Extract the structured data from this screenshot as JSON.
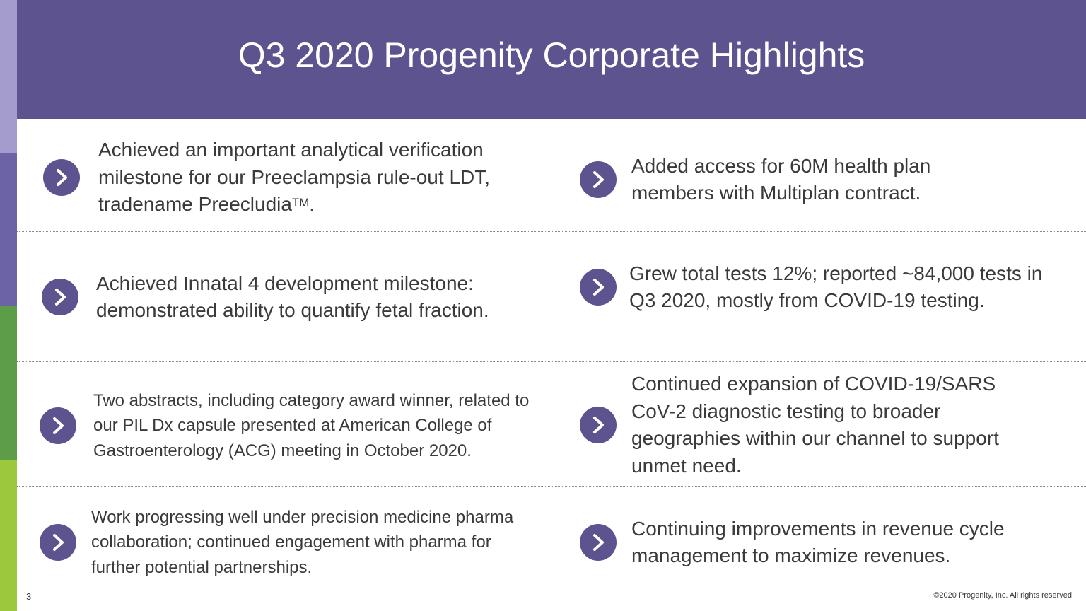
{
  "title": "Q3 2020 Progenity Corporate Highlights",
  "icons": {
    "bullet": "chevron-right-circle-icon"
  },
  "colors": {
    "header": "#5c538f",
    "bullet": "#5c538f"
  },
  "left_items": [
    {
      "text": "Achieved an important analytical verification milestone for our Preeclampsia rule-out LDT, tradename Preecludia",
      "sup": "TM",
      "suffix": "."
    },
    {
      "text": "Achieved Innatal 4 development milestone: demonstrated ability to quantify fetal fraction."
    },
    {
      "text": "Two abstracts, including category award winner, related to our PIL Dx capsule presented at American College of Gastroenterology (ACG) meeting in October 2020."
    },
    {
      "text": "Work progressing well under precision medicine pharma collaboration; continued engagement with pharma for further potential partnerships."
    }
  ],
  "right_items": [
    {
      "text": "Added access for 60M health plan members with Multiplan contract."
    },
    {
      "text": "Grew total tests 12%; reported ~84,000 tests in Q3 2020, mostly from COVID-19 testing."
    },
    {
      "text": "Continued expansion of COVID-19/SARS CoV-2 diagnostic testing to broader geographies within our channel to support unmet need."
    },
    {
      "text": "Continuing improvements in revenue cycle management to maximize revenues."
    }
  ],
  "footer": {
    "page_number": "3",
    "copyright": "©2020 Progenity, Inc. All rights reserved."
  }
}
